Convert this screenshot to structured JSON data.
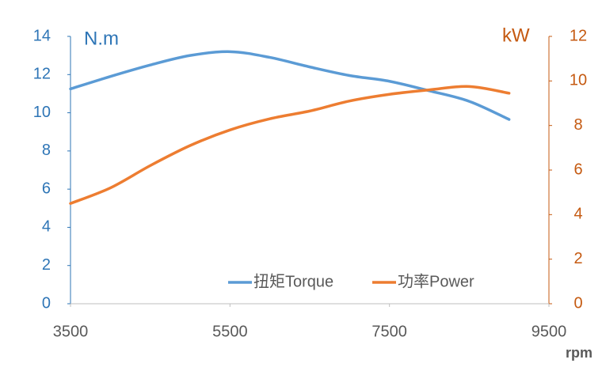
{
  "chart_data": {
    "type": "line",
    "x": [
      3500,
      4000,
      4500,
      5000,
      5500,
      6000,
      6500,
      7000,
      7500,
      8000,
      8500,
      9000
    ],
    "xlabel": "rpm",
    "ylabel": "N.m",
    "y2label": "kW",
    "xlim": [
      3500,
      9500
    ],
    "xticks": [
      3500,
      5500,
      7500,
      9500
    ],
    "ylim": [
      0,
      14
    ],
    "yticks": [
      0,
      2,
      4,
      6,
      8,
      10,
      12,
      14
    ],
    "y2lim": [
      0,
      12
    ],
    "y2ticks": [
      0,
      2,
      4,
      6,
      8,
      10,
      12
    ],
    "grid": false,
    "legend": "bottom",
    "series": [
      {
        "name": "扭矩Torque",
        "color": "#5b9bd5",
        "values": [
          11.25,
          11.9,
          12.5,
          13.0,
          13.2,
          12.9,
          12.4,
          11.95,
          11.65,
          11.15,
          10.6,
          9.65
        ]
      },
      {
        "name": "功率Power",
        "color": "#ed7d31",
        "axis": "y2",
        "values": [
          4.5,
          5.2,
          6.2,
          7.1,
          7.8,
          8.3,
          8.65,
          9.1,
          9.4,
          9.6,
          9.75,
          9.45
        ]
      }
    ]
  }
}
